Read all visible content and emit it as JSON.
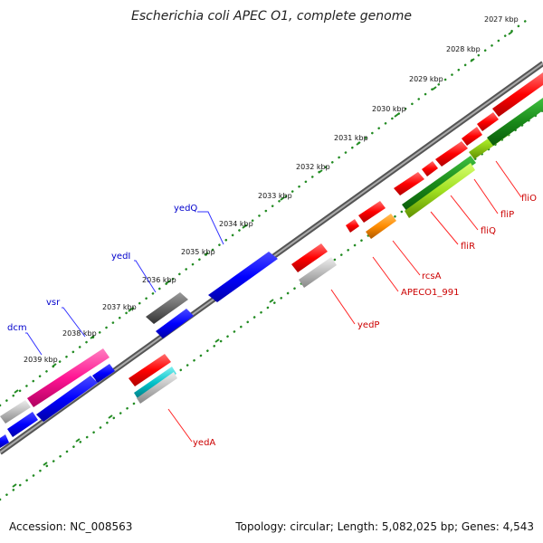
{
  "title": "Escherichia coli APEC O1, complete genome",
  "footer": {
    "accession": "Accession: NC_008563",
    "summary": "Topology: circular; Length: 5,082,025 bp; Genes: 4,543"
  },
  "scale_ticks": [
    "2027 kbp",
    "2028 kbp",
    "2029 kbp",
    "2030 kbp",
    "2031 kbp",
    "2032 kbp",
    "2033 kbp",
    "2034 kbp",
    "2035 kbp",
    "2036 kbp",
    "2037 kbp",
    "2038 kbp",
    "2039 kbp"
  ],
  "gene_labels_outer": [
    "yedQ",
    "yedI",
    "vsr",
    "dcm"
  ],
  "gene_labels_inner": [
    "fliO",
    "fliP",
    "fliQ",
    "fliR",
    "rcsA",
    "APECO1_991",
    "yedP",
    "yedA"
  ],
  "colors": {
    "forward_gene": "#ff0000",
    "reverse_gene": "#0000ff",
    "label_outer": "#0000cc",
    "label_inner": "#cc0000",
    "scale_dots": "#228b22",
    "backbone": "#777777"
  }
}
